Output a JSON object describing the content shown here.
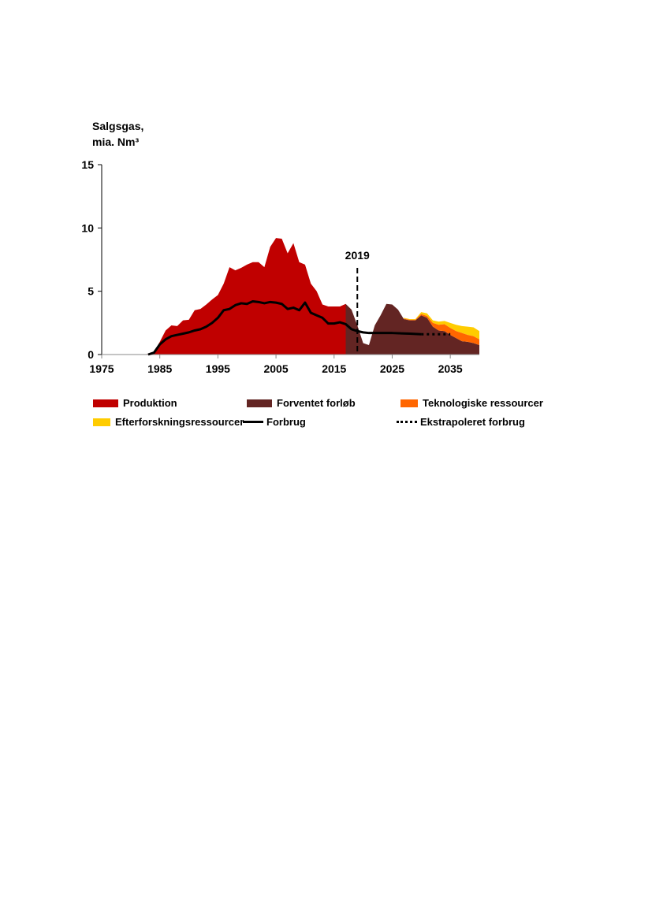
{
  "chart_data": {
    "type": "area",
    "ylabel_line1": "Salgsgas,",
    "ylabel_line2": "mia. Nm³",
    "ylim": [
      0,
      15
    ],
    "xlim": [
      1975,
      2040
    ],
    "yticks": [
      "0",
      "5",
      "10",
      "15"
    ],
    "xticks": [
      "1975",
      "1985",
      "1995",
      "2005",
      "2015",
      "2025",
      "2035"
    ],
    "annotation": "2019",
    "annotation_year": 2019,
    "colors": {
      "produktion": "#c00000",
      "forventet": "#632523",
      "tekno": "#ff6600",
      "efter": "#ffcc00",
      "forbrug": "#000000"
    },
    "produktion": {
      "name": "Produktion",
      "x": [
        1982,
        1983,
        1984,
        1985,
        1986,
        1987,
        1988,
        1989,
        1990,
        1991,
        1992,
        1993,
        1994,
        1995,
        1996,
        1997,
        1998,
        1999,
        2000,
        2001,
        2002,
        2003,
        2004,
        2005,
        2006,
        2007,
        2008,
        2009,
        2010,
        2011,
        2012,
        2013,
        2014,
        2015,
        2016,
        2017
      ],
      "y": [
        0,
        0.05,
        0.2,
        1.0,
        1.9,
        2.3,
        2.25,
        2.7,
        2.75,
        3.5,
        3.6,
        3.95,
        4.35,
        4.7,
        5.6,
        6.9,
        6.65,
        6.85,
        7.1,
        7.3,
        7.3,
        6.9,
        8.5,
        9.2,
        9.15,
        8.0,
        8.8,
        7.3,
        7.1,
        5.6,
        5.0,
        3.95,
        3.8,
        3.8,
        3.8,
        4.0
      ]
    },
    "forventet": {
      "name": "Forventet forløb",
      "x": [
        2017,
        2018,
        2019,
        2020,
        2021,
        2022,
        2023,
        2024,
        2025,
        2026,
        2027,
        2028,
        2029,
        2030,
        2031,
        2032,
        2033,
        2034,
        2035,
        2036,
        2037,
        2038,
        2039,
        2040
      ],
      "y": [
        4.0,
        3.55,
        2.3,
        0.9,
        0.75,
        2.3,
        3.1,
        4.0,
        3.95,
        3.55,
        2.8,
        2.7,
        2.7,
        3.1,
        2.9,
        2.2,
        1.9,
        1.85,
        1.55,
        1.3,
        1.05,
        1.0,
        0.9,
        0.75
      ]
    },
    "tekno": {
      "name": "Teknologiske ressourcer",
      "x": [
        2027,
        2028,
        2029,
        2030,
        2031,
        2032,
        2033,
        2034,
        2035,
        2036,
        2037,
        2038,
        2039,
        2040
      ],
      "y": [
        0.05,
        0.05,
        0.05,
        0.1,
        0.15,
        0.3,
        0.45,
        0.55,
        0.55,
        0.55,
        0.65,
        0.55,
        0.55,
        0.45
      ]
    },
    "efter": {
      "name": "Efterforskningsressourcer",
      "x": [
        2027,
        2028,
        2029,
        2030,
        2031,
        2032,
        2033,
        2034,
        2035,
        2036,
        2037,
        2038,
        2039,
        2040
      ],
      "y": [
        0.05,
        0.05,
        0.05,
        0.15,
        0.2,
        0.2,
        0.25,
        0.25,
        0.4,
        0.5,
        0.55,
        0.65,
        0.7,
        0.65
      ]
    },
    "forbrug": {
      "name": "Forbrug",
      "x": [
        1983,
        1984,
        1985,
        1986,
        1987,
        1988,
        1989,
        1990,
        1991,
        1992,
        1993,
        1994,
        1995,
        1996,
        1997,
        1998,
        1999,
        2000,
        2001,
        2002,
        2003,
        2004,
        2005,
        2006,
        2007,
        2008,
        2009,
        2010,
        2011,
        2012,
        2013,
        2014,
        2015,
        2016,
        2017,
        2018,
        2019,
        2020,
        2021,
        2025,
        2028,
        2030
      ],
      "y": [
        0,
        0.15,
        0.8,
        1.2,
        1.45,
        1.55,
        1.65,
        1.75,
        1.9,
        2.0,
        2.2,
        2.5,
        2.9,
        3.5,
        3.6,
        3.9,
        4.05,
        4.0,
        4.2,
        4.15,
        4.05,
        4.15,
        4.1,
        4.0,
        3.6,
        3.7,
        3.5,
        4.1,
        3.3,
        3.1,
        2.9,
        2.45,
        2.45,
        2.55,
        2.4,
        2.0,
        1.85,
        1.75,
        1.7,
        1.7,
        1.65,
        1.6
      ]
    },
    "ekstrapoleret": {
      "name": "Ekstrapoleret forbrug",
      "x": [
        2030,
        2035
      ],
      "y": [
        1.6,
        1.6
      ]
    }
  }
}
